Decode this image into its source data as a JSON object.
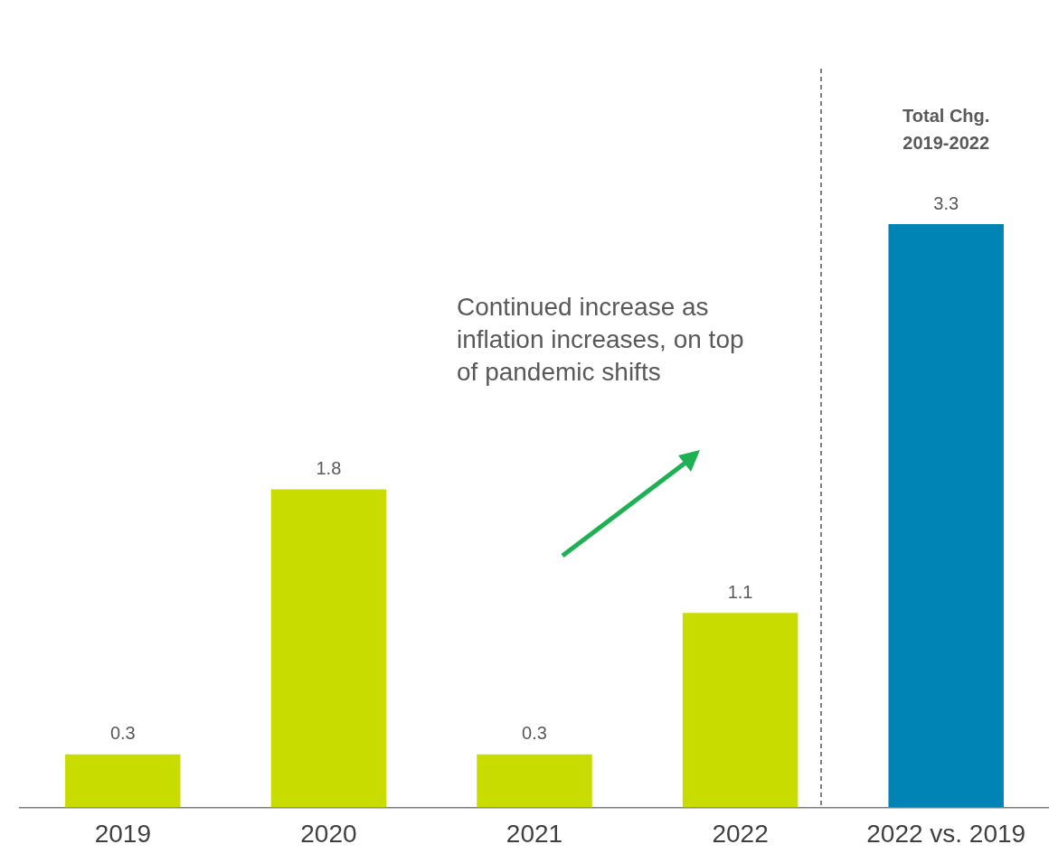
{
  "chart_data": {
    "type": "bar",
    "categories": [
      "2019",
      "2020",
      "2021",
      "2022",
      "2022 vs. 2019"
    ],
    "values": [
      0.3,
      1.8,
      0.3,
      1.1,
      3.3
    ],
    "colors": [
      "#c8dc00",
      "#c8dc00",
      "#c8dc00",
      "#c8dc00",
      "#0083b5"
    ],
    "data_labels": true,
    "grid": false,
    "legend": false,
    "annotations": [
      "Total Chg. 2019-2022",
      "Continued increase as inflation increases, on top of pandemic shifts"
    ]
  }
}
